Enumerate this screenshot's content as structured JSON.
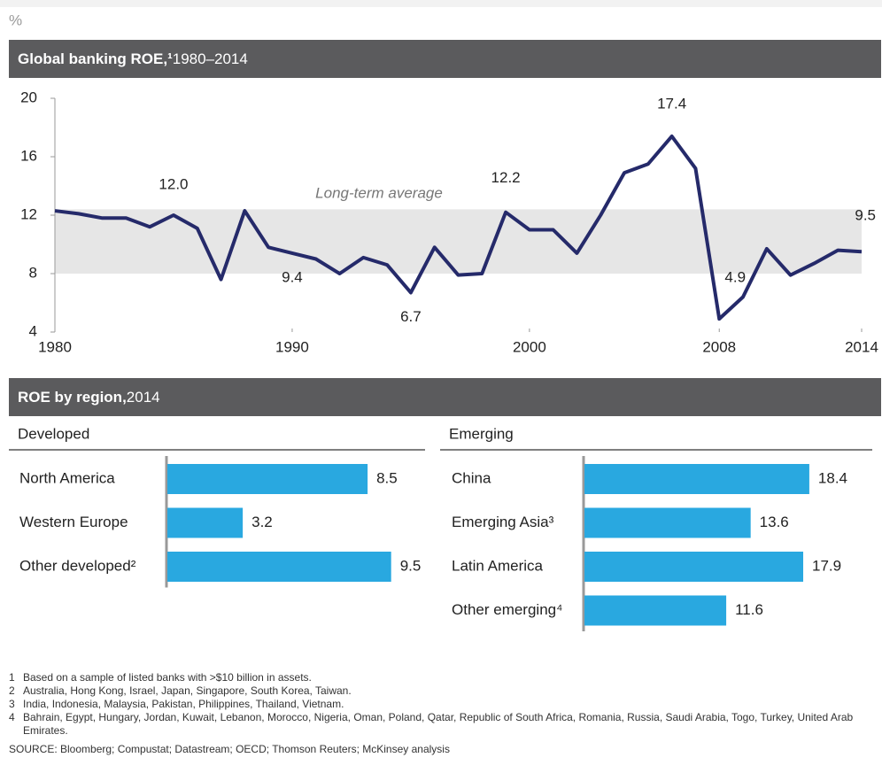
{
  "unit": "%",
  "chart_data": [
    {
      "type": "line",
      "title": "Global banking ROE,¹",
      "subtitle": "1980–2014",
      "x": [
        1980,
        1981,
        1982,
        1983,
        1984,
        1985,
        1986,
        1987,
        1988,
        1989,
        1990,
        1991,
        1992,
        1993,
        1994,
        1995,
        1996,
        1997,
        1998,
        1999,
        2000,
        2001,
        2002,
        2003,
        2004,
        2005,
        2006,
        2007,
        2008,
        2009,
        2010,
        2011,
        2012,
        2013,
        2014
      ],
      "xlim": [
        1980,
        2014
      ],
      "xticks": [
        1980,
        1990,
        2000,
        2008,
        2014
      ],
      "ylim": [
        4,
        20
      ],
      "yticks": [
        4,
        8,
        12,
        16,
        20
      ],
      "series": [
        {
          "color": "#252a6a",
          "values": [
            12.3,
            12.1,
            11.8,
            11.8,
            11.2,
            12.0,
            11.1,
            7.6,
            12.3,
            9.8,
            9.4,
            9.0,
            8.0,
            9.1,
            8.6,
            6.7,
            9.8,
            7.9,
            8.0,
            12.2,
            11.0,
            11.0,
            9.4,
            12.0,
            14.9,
            15.5,
            17.4,
            15.2,
            4.9,
            6.4,
            9.7,
            7.9,
            8.7,
            9.6,
            9.5
          ],
          "value_labels": [
            null,
            null,
            null,
            null,
            null,
            "12.0",
            null,
            null,
            null,
            null,
            "9.4",
            null,
            null,
            null,
            null,
            "6.7",
            null,
            null,
            null,
            "12.2",
            null,
            null,
            null,
            null,
            null,
            null,
            "17.4",
            null,
            "4.9",
            null,
            null,
            null,
            null,
            null,
            "9.5"
          ]
        }
      ],
      "band": {
        "label": "Long-term average",
        "range": [
          8,
          12.4
        ],
        "color": "#e6e6e6"
      }
    },
    {
      "type": "hbar",
      "title": "Developed",
      "categories": [
        "North America",
        "Western Europe",
        "Other developed²"
      ],
      "values": [
        8.5,
        3.2,
        9.5
      ],
      "color": "#29a8e0",
      "xlim": [
        0,
        10
      ]
    },
    {
      "type": "hbar",
      "title": "Emerging",
      "categories": [
        "China",
        "Emerging Asia³",
        "Latin America",
        "Other emerging⁴"
      ],
      "values": [
        18.4,
        13.6,
        17.9,
        11.6
      ],
      "color": "#29a8e0",
      "xlim": [
        0,
        20
      ]
    }
  ],
  "region_header": {
    "title": "ROE by region,",
    "subtitle": "2014"
  },
  "footnotes": [
    {
      "number": "1",
      "text": "Based on a sample of listed banks with >$10 billion in assets."
    },
    {
      "number": "2",
      "text": "Australia, Hong Kong, Israel, Japan, Singapore, South Korea, Taiwan."
    },
    {
      "number": "3",
      "text": "India, Indonesia, Malaysia, Pakistan, Philippines, Thailand, Vietnam."
    },
    {
      "number": "4",
      "text": "Bahrain, Egypt, Hungary, Jordan, Kuwait, Lebanon, Morocco, Nigeria, Oman, Poland, Qatar, Republic of South Africa, Romania, Russia, Saudi Arabia, Togo, Turkey, United Arab Emirates."
    }
  ],
  "source": "SOURCE: Bloomberg; Compustat; Datastream; OECD; Thomson Reuters; McKinsey analysis"
}
